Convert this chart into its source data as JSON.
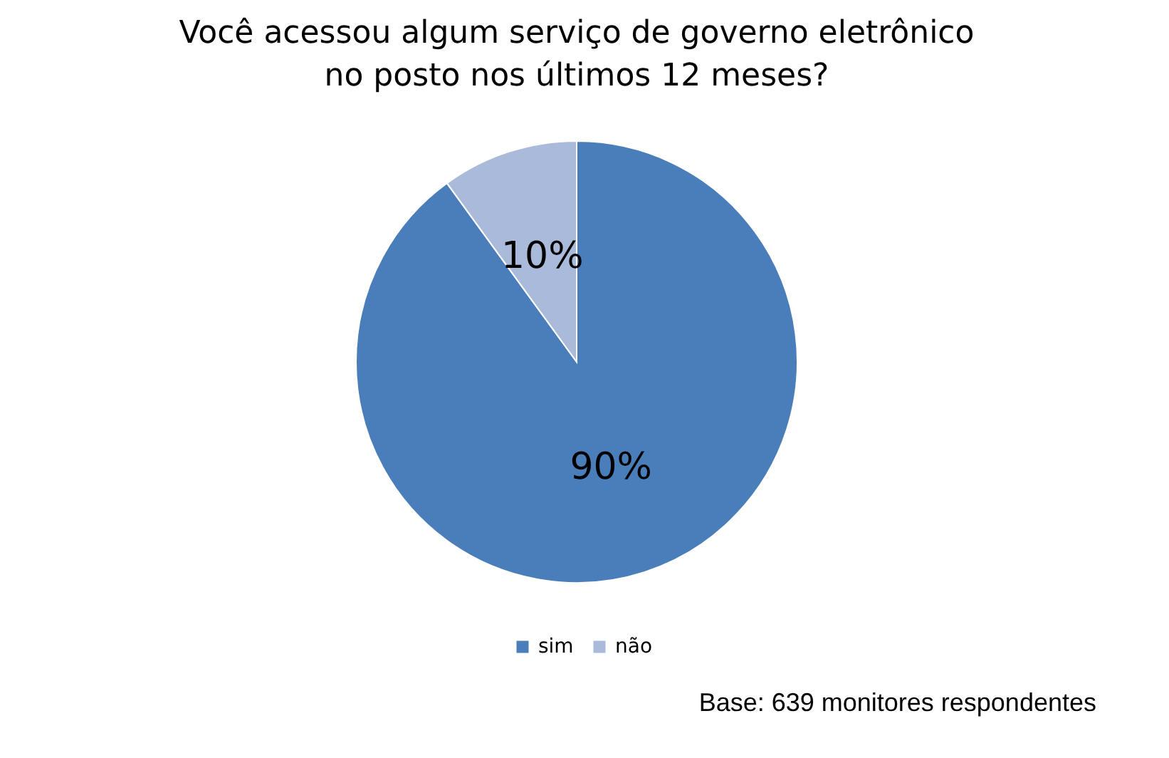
{
  "chart_data": {
    "type": "pie",
    "title": "Você acessou algum serviço de governo eletrônico no posto nos últimos 12 meses?",
    "categories": [
      "sim",
      "não"
    ],
    "values": [
      90,
      10
    ],
    "colors": [
      "#4a7ebb",
      "#a9badb"
    ],
    "value_labels": [
      "90%",
      "10%"
    ],
    "legend": "bottom",
    "annotations": [
      "Base: 639 monitores respondentes"
    ]
  }
}
